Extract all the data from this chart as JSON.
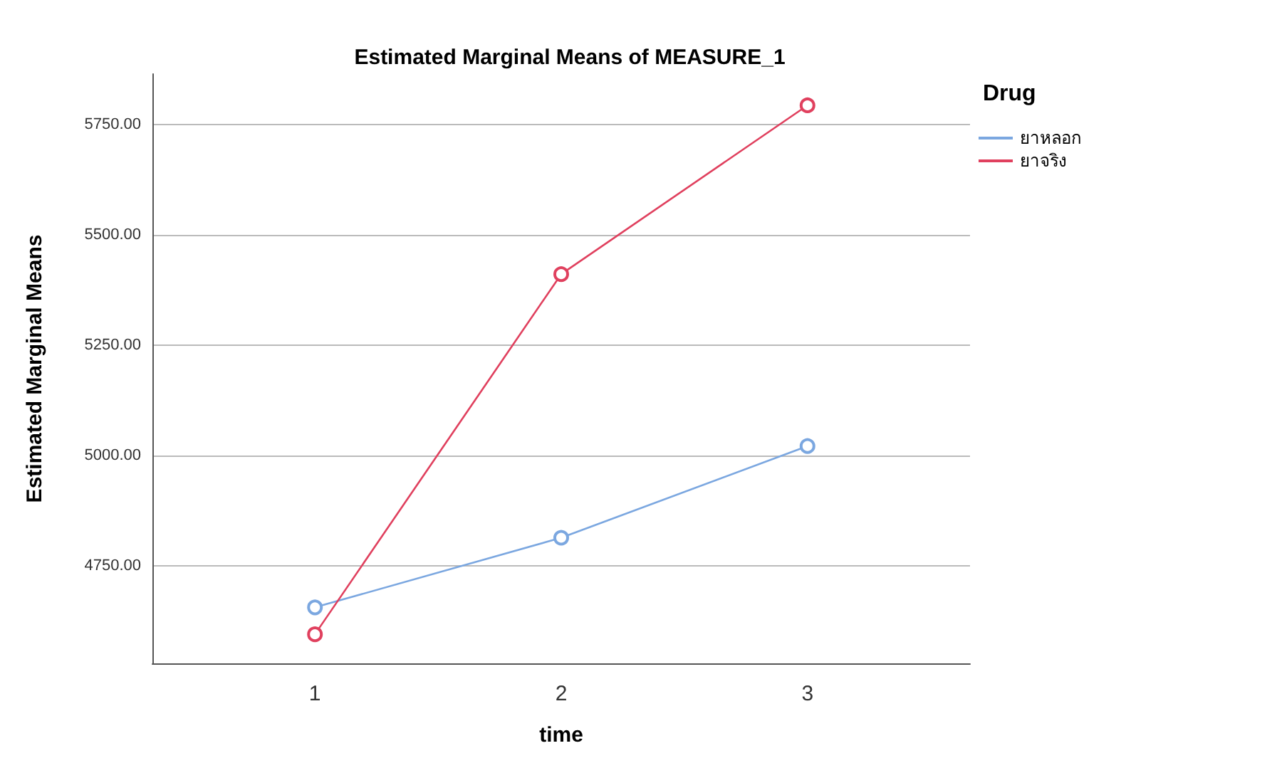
{
  "chart_data": {
    "type": "line",
    "title": "Estimated Marginal Means of MEASURE_1",
    "xlabel": "time",
    "ylabel": "Estimated Marginal Means",
    "legend_title": "Drug",
    "x": [
      1,
      2,
      3
    ],
    "xlim": [
      0.34,
      3.66
    ],
    "xticks": [
      1,
      2,
      3
    ],
    "ylim": [
      4528,
      5865
    ],
    "yticks": [
      {
        "value": 4750,
        "label": "4750.00"
      },
      {
        "value": 5000,
        "label": "5000.00"
      },
      {
        "value": 5250,
        "label": "5250.00"
      },
      {
        "value": 5500,
        "label": "5500.00"
      },
      {
        "value": 5750,
        "label": "5750.00"
      }
    ],
    "series": [
      {
        "name": "ยาหลอก",
        "color": "#7ba7e0",
        "values": [
          4655,
          4813,
          5021
        ]
      },
      {
        "name": "ยาจริง",
        "color": "#e0405e",
        "values": [
          4594,
          5411,
          5794
        ]
      }
    ],
    "grid": "y",
    "legend": "top right",
    "marker": "circle",
    "line_style": "solid"
  }
}
